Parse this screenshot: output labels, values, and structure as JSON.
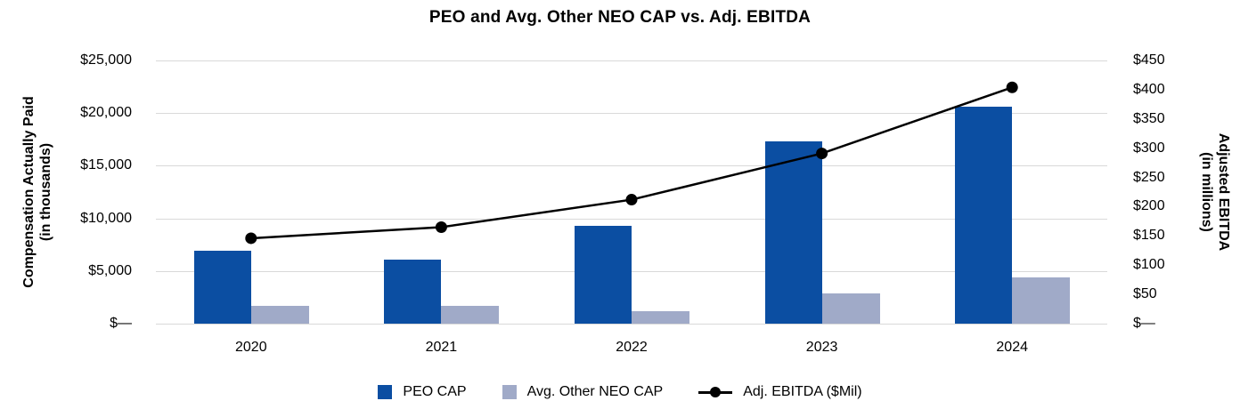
{
  "title": "PEO and Avg. Other NEO CAP vs. Adj. EBITDA",
  "left_axis": {
    "title": [
      "Compensation Actually Paid",
      "(in thousands)"
    ],
    "ticks": [
      {
        "label": "$25,000",
        "value": 25000
      },
      {
        "label": "$20,000",
        "value": 20000
      },
      {
        "label": "$15,000",
        "value": 15000
      },
      {
        "label": "$10,000",
        "value": 10000
      },
      {
        "label": "$5,000",
        "value": 5000
      },
      {
        "label": "$—",
        "value": 0
      }
    ]
  },
  "right_axis": {
    "title": [
      "Adjusted EBITDA",
      "(in millions)"
    ],
    "ticks": [
      {
        "label": "$450",
        "value": 450
      },
      {
        "label": "$400",
        "value": 400
      },
      {
        "label": "$350",
        "value": 350
      },
      {
        "label": "$300",
        "value": 300
      },
      {
        "label": "$250",
        "value": 250
      },
      {
        "label": "$200",
        "value": 200
      },
      {
        "label": "$150",
        "value": 150
      },
      {
        "label": "$100",
        "value": 100
      },
      {
        "label": "$50",
        "value": 50
      },
      {
        "label": "$—",
        "value": 0
      }
    ]
  },
  "legend": {
    "items": [
      {
        "label": "PEO CAP",
        "marker": "square",
        "color": "#0B4EA2"
      },
      {
        "label": "Avg. Other NEO CAP",
        "marker": "square",
        "color": "#A0AAC8"
      },
      {
        "label": "Adj. EBITDA ($Mil)",
        "marker": "line-dot",
        "color": "#000000"
      }
    ]
  },
  "colors": {
    "peo_bar": "#0B4EA2",
    "neo_bar": "#A0AAC8",
    "line": "#000000",
    "grid": "#D9D9D9",
    "text": "#000000",
    "background": "#FFFFFF"
  },
  "chart_data": {
    "type": "bar",
    "subtype": "grouped bars with overlaid line (dual axis)",
    "title": "PEO and Avg. Other NEO CAP vs. Adj. EBITDA",
    "categories": [
      "2020",
      "2021",
      "2022",
      "2023",
      "2024"
    ],
    "series": [
      {
        "name": "PEO CAP",
        "type": "bar",
        "axis": "left",
        "color": "#0B4EA2",
        "values": [
          6900,
          6100,
          9300,
          17300,
          20600
        ]
      },
      {
        "name": "Avg. Other NEO CAP",
        "type": "bar",
        "axis": "left",
        "color": "#A0AAC8",
        "values": [
          1650,
          1700,
          1200,
          2850,
          4400
        ]
      },
      {
        "name": "Adj. EBITDA ($Mil)",
        "type": "line",
        "axis": "right",
        "color": "#000000",
        "values": [
          146,
          165,
          212,
          291,
          404
        ]
      }
    ],
    "left_ylabel": "Compensation Actually Paid (in thousands)",
    "right_ylabel": "Adjusted EBITDA (in millions)",
    "left_ylim": [
      0,
      25000
    ],
    "right_ylim": [
      0,
      450
    ],
    "grid": "horizontal",
    "legend_position": "bottom"
  }
}
